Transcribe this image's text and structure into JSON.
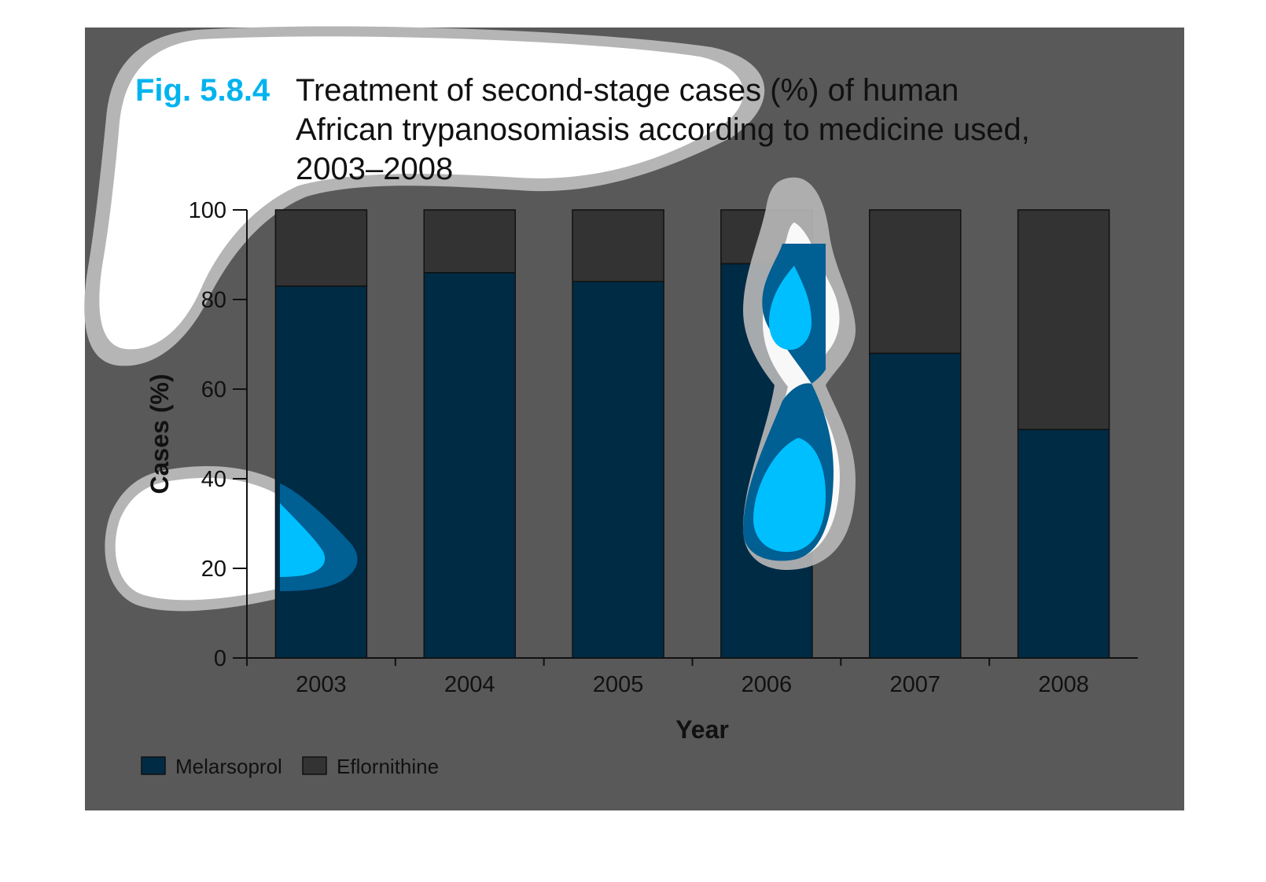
{
  "figure": {
    "label": "Fig. 5.8.4",
    "title_lines": [
      "Treatment of second-stage cases (%) of human",
      "African trypanosomiasis according to medicine used,",
      "2003–2008"
    ]
  },
  "chart_data": {
    "type": "bar",
    "stacked": true,
    "categories": [
      "2003",
      "2004",
      "2005",
      "2006",
      "2007",
      "2008"
    ],
    "series": [
      {
        "name": "Melarsoprol",
        "color": "#002b45",
        "values": [
          83,
          86,
          84,
          88,
          68,
          51
        ]
      },
      {
        "name": "Eflornithine",
        "color": "#333333",
        "values": [
          17,
          14,
          16,
          12,
          32,
          49
        ]
      }
    ],
    "xlabel": "Year",
    "ylabel": "Cases (%)",
    "ylim": [
      0,
      100
    ],
    "yticks": [
      0,
      20,
      40,
      60,
      80,
      100
    ],
    "grid": false,
    "legend_position": "bottom-left"
  },
  "colors": {
    "panel_background": "#595959",
    "figure_label": "#00b3ee",
    "axis": "#111111",
    "highlight_white": "#ffffff",
    "highlight_gray": "#b8b8b8",
    "highlight_cyan": "#00bfff",
    "highlight_blue": "#005f93"
  }
}
